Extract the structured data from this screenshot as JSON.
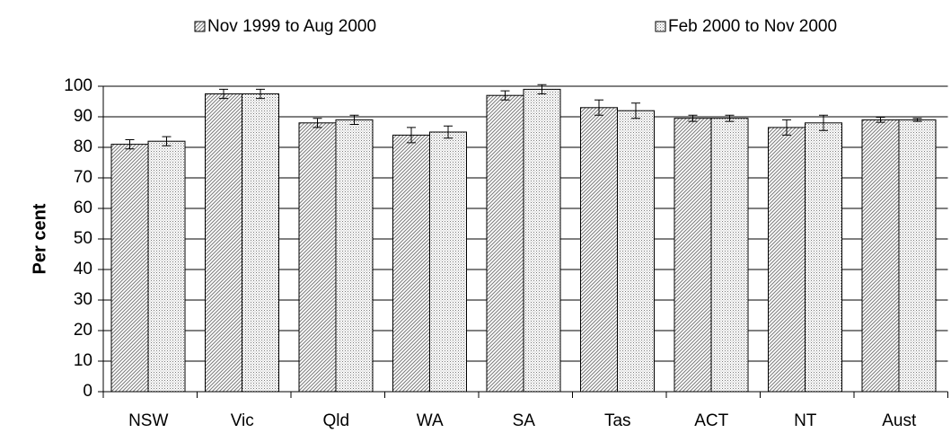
{
  "chart_data": {
    "type": "bar",
    "y_label": "Per cent",
    "categories": [
      "NSW",
      "Vic",
      "Qld",
      "WA",
      "SA",
      "Tas",
      "ACT",
      "NT",
      "Aust"
    ],
    "series": [
      {
        "name": "Nov 1999 to Aug 2000",
        "pattern": "diagonal",
        "color": "#808080",
        "values": [
          81,
          97.5,
          88,
          84,
          97,
          93,
          89.5,
          86.5,
          89
        ],
        "errors": [
          1.5,
          1.5,
          1.5,
          2.5,
          1.5,
          2.5,
          1,
          2.5,
          0.8
        ]
      },
      {
        "name": "Feb 2000 to Nov 2000",
        "pattern": "dots",
        "color": "#808080",
        "values": [
          82,
          97.5,
          89,
          85,
          99,
          92,
          89.5,
          88,
          89
        ],
        "errors": [
          1.5,
          1.5,
          1.5,
          2,
          1.5,
          2.5,
          1,
          2.5,
          0.5
        ]
      }
    ],
    "ylim": [
      0,
      100
    ],
    "yticks": [
      0,
      10,
      20,
      30,
      40,
      50,
      60,
      70,
      80,
      90,
      100
    ],
    "grid": true,
    "legend": "top"
  }
}
